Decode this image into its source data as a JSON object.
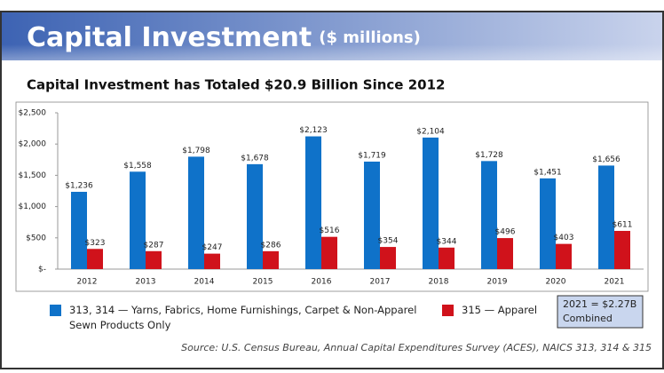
{
  "chart_data": {
    "type": "bar",
    "title": "Capital Investment",
    "title_unit": "($ millions)",
    "subtitle": "Capital Investment has Totaled $20.9 Billion Since 2012",
    "categories": [
      "2012",
      "2013",
      "2014",
      "2015",
      "2016",
      "2017",
      "2018",
      "2019",
      "2020",
      "2021"
    ],
    "series": [
      {
        "name": "313, 314 — Yarns, Fabrics, Home Furnishings, Carpet & Non-Apparel Sewn Products Only",
        "color": "#0f72c9",
        "values": [
          1236,
          1558,
          1798,
          1678,
          2123,
          1719,
          2104,
          1728,
          1451,
          1656
        ],
        "value_labels": [
          "$1,236",
          "$1,558",
          "$1,798",
          "$1,678",
          "$2,123",
          "$1,719",
          "$2,104",
          "$1,728",
          "$1,451",
          "$1,656"
        ]
      },
      {
        "name": "315 — Apparel",
        "color": "#d0121b",
        "values": [
          323,
          287,
          247,
          286,
          516,
          354,
          344,
          496,
          403,
          611
        ],
        "value_labels": [
          "$323",
          "$287",
          "$247",
          "$286",
          "$516",
          "$354",
          "$344",
          "$496",
          "$403",
          "$611"
        ]
      }
    ],
    "ylim": [
      0,
      2500
    ],
    "yticks": [
      {
        "value": 0,
        "label": "$-"
      },
      {
        "value": 500,
        "label": "$500"
      },
      {
        "value": 1000,
        "label": "$1,000"
      },
      {
        "value": 1500,
        "label": "$1,500"
      },
      {
        "value": 2000,
        "label": "$2,000"
      },
      {
        "value": 2500,
        "label": "$2,500"
      }
    ],
    "annotation": [
      "2021 = $2.27B",
      "Combined"
    ],
    "source": "Source: U.S. Census Bureau, Annual Capital Expenditures Survey (ACES), NAICS 313, 314 & 315"
  }
}
